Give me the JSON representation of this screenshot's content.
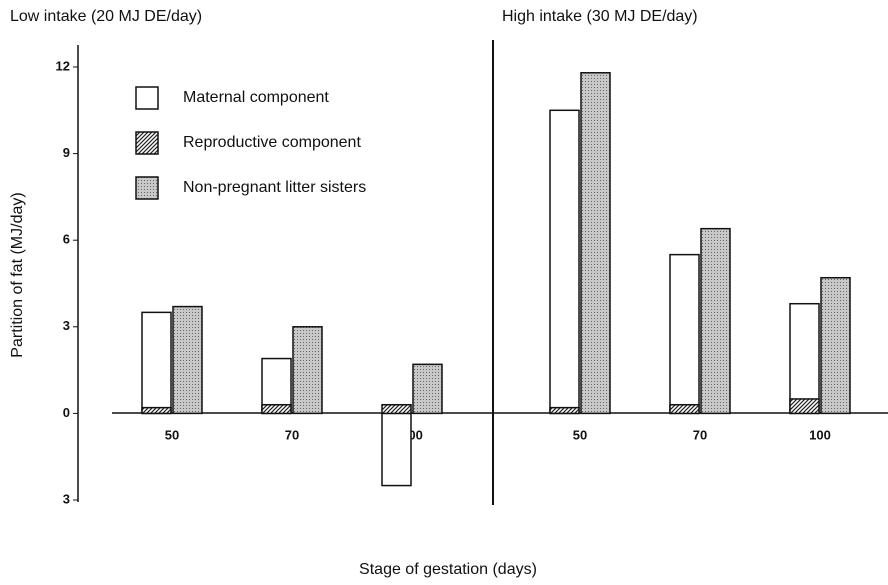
{
  "chart_data": [
    {
      "type": "bar",
      "title": "Low intake (20 MJ DE/day)",
      "xlabel": "Stage of gestation (days)",
      "ylabel": "Partition of fat (MJ/day)",
      "categories": [
        "50",
        "70",
        "100"
      ],
      "series": [
        {
          "name": "Maternal component",
          "color": "#ffffff",
          "values": [
            3.5,
            1.9,
            -2.5
          ]
        },
        {
          "name": "Reproductive component",
          "color": "#444444",
          "pattern": "hatch",
          "values": [
            0.2,
            0.3,
            0.3
          ]
        },
        {
          "name": "Non-pregnant litter sisters",
          "color": "#bbbbbb",
          "pattern": "dots",
          "values": [
            3.7,
            3.0,
            1.7
          ]
        }
      ],
      "ylim": [
        -3,
        12
      ],
      "yticks": [
        {
          "value": -3,
          "label": "3"
        },
        0,
        3,
        6,
        9,
        12
      ],
      "legend": "upper left"
    },
    {
      "type": "bar",
      "title": "High intake (30 MJ DE/day)",
      "categories": [
        "50",
        "70",
        "100"
      ],
      "series": [
        {
          "color": "#ffffff",
          "values": [
            10.5,
            5.5,
            3.8
          ]
        },
        {
          "color": "#444444",
          "pattern": "hatch",
          "values": [
            0.2,
            0.3,
            0.5
          ]
        },
        {
          "color": "#bbbbbb",
          "pattern": "dots",
          "values": [
            11.8,
            6.4,
            4.7
          ]
        }
      ]
    }
  ]
}
